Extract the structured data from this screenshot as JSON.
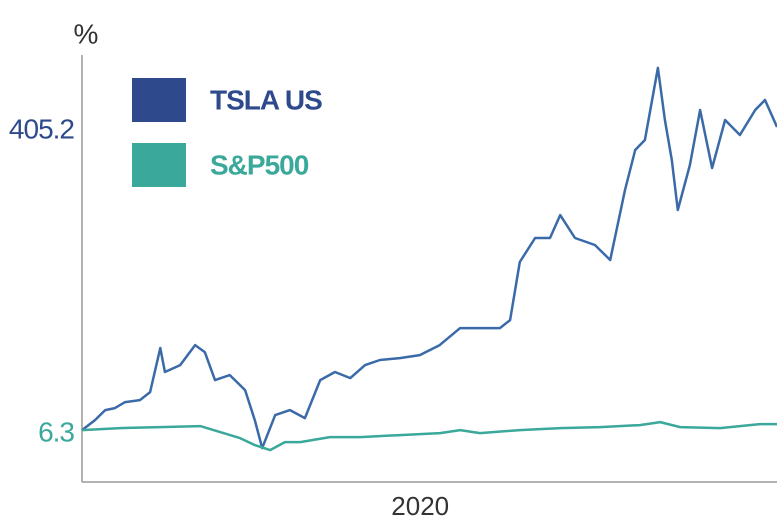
{
  "chart_data": {
    "type": "line",
    "ylabel": "%",
    "x_label_positions": null,
    "xlim": [
      2019.27,
      2020.77
    ],
    "xticks": [
      2020
    ],
    "ylim": [
      -62,
      546
    ],
    "yticks": [
      6.3,
      405.2
    ],
    "ytick_colors": [
      "#3aa89a",
      "#2e4a8c"
    ],
    "legend": "upper left",
    "series": [
      {
        "name": "TSLA US",
        "color": "#3b6aa8",
        "legend_color": "#2e4a8c",
        "x": [
          2019.27,
          2019.298,
          2019.32,
          2019.341,
          2019.363,
          2019.395,
          2019.417,
          2019.439,
          2019.449,
          2019.482,
          2019.514,
          2019.535,
          2019.557,
          2019.589,
          2019.622,
          2019.643,
          2019.659,
          2019.687,
          2019.719,
          2019.751,
          2019.784,
          2019.816,
          2019.849,
          2019.881,
          2019.913,
          2019.956,
          2019.999,
          2020.042,
          2020.086,
          2020.129,
          2020.172,
          2020.194,
          2020.215,
          2020.248,
          2020.28,
          2020.302,
          2020.334,
          2020.377,
          2020.41,
          2020.442,
          2020.464,
          2020.485,
          2020.513,
          2020.528,
          2020.543,
          2020.556,
          2020.582,
          2020.604,
          2020.63,
          2020.658,
          2020.69,
          2020.723,
          2020.744,
          2020.77
        ],
        "values": [
          6.3,
          19.5,
          32.6,
          35.3,
          43.2,
          45.8,
          56.3,
          114.3,
          82.7,
          91.9,
          118.2,
          109.0,
          72.1,
          78.7,
          59.0,
          19.5,
          -17.4,
          26.0,
          32.6,
          22.1,
          72.1,
          82.7,
          74.8,
          91.9,
          98.5,
          101.1,
          105.0,
          118.2,
          140.6,
          140.6,
          140.6,
          151.1,
          227.5,
          259.1,
          259.1,
          289.3,
          259.1,
          249.9,
          230.1,
          322.3,
          374.9,
          388.1,
          482.9,
          414.4,
          361.8,
          295.9,
          355.2,
          427.6,
          351.2,
          414.4,
          394.7,
          427.6,
          440.7,
          405.2
        ]
      },
      {
        "name": "S&P500",
        "color": "#3aa89a",
        "legend_color": "#3aa89a",
        "x": [
          2019.27,
          2019.352,
          2019.438,
          2019.525,
          2019.568,
          2019.611,
          2019.643,
          2019.676,
          2019.708,
          2019.741,
          2019.805,
          2019.87,
          2019.956,
          2020.043,
          2020.086,
          2020.129,
          2020.215,
          2020.302,
          2020.388,
          2020.474,
          2020.518,
          2020.561,
          2020.647,
          2020.733,
          2020.77
        ],
        "values": [
          6.3,
          8.9,
          10.2,
          11.6,
          3.7,
          -4.2,
          -13.4,
          -20.0,
          -9.5,
          -9.5,
          -2.9,
          -2.9,
          -0.3,
          2.4,
          6.3,
          2.4,
          6.3,
          8.9,
          10.2,
          12.9,
          16.8,
          10.2,
          8.9,
          14.2,
          14.2
        ]
      }
    ]
  }
}
